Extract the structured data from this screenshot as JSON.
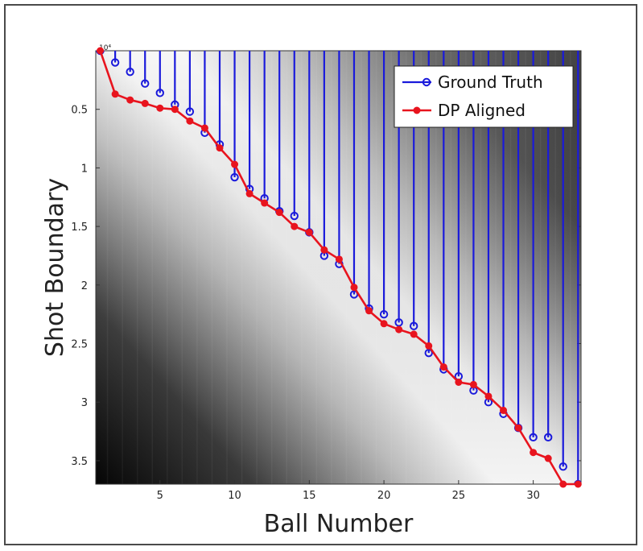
{
  "chart_data": {
    "type": "line",
    "background": "heatmap",
    "xlabel": "Ball Number",
    "ylabel": "Shot Boundary",
    "y_exponent_label": "10⁴",
    "xlim": [
      0.7,
      33.2
    ],
    "ylim": [
      0,
      3.7
    ],
    "y_inverted": true,
    "x_ticks": [
      5,
      10,
      15,
      20,
      25,
      30
    ],
    "y_ticks": [
      0.5,
      1,
      1.5,
      2,
      2.5,
      3,
      3.5
    ],
    "legend_position": "top-right",
    "grid": false,
    "series": [
      {
        "name": "Ground Truth",
        "color": "#1a1adb",
        "style": "stem-circle",
        "x": [
          1,
          2,
          3,
          4,
          5,
          6,
          7,
          8,
          9,
          10,
          11,
          12,
          13,
          14,
          15,
          16,
          17,
          18,
          19,
          20,
          21,
          22,
          23,
          24,
          25,
          26,
          27,
          28,
          29,
          30,
          31,
          32,
          33
        ],
        "y": [
          0,
          0.1,
          0.18,
          0.28,
          0.36,
          0.46,
          0.52,
          0.7,
          0.8,
          1.08,
          1.18,
          1.26,
          1.37,
          1.41,
          1.55,
          1.75,
          1.82,
          2.08,
          2.2,
          2.25,
          2.32,
          2.35,
          2.58,
          2.72,
          2.78,
          2.9,
          3,
          3.1,
          3.22,
          3.3,
          3.3,
          3.55,
          3.7
        ]
      },
      {
        "name": "DP Aligned",
        "color": "#e8141e",
        "style": "line-dot",
        "x": [
          1,
          2,
          3,
          4,
          5,
          6,
          7,
          8,
          9,
          10,
          11,
          12,
          13,
          14,
          15,
          16,
          17,
          18,
          19,
          20,
          21,
          22,
          23,
          24,
          25,
          26,
          27,
          28,
          29,
          30,
          31,
          32,
          33
        ],
        "y": [
          0,
          0.37,
          0.42,
          0.45,
          0.49,
          0.5,
          0.6,
          0.66,
          0.83,
          0.97,
          1.22,
          1.3,
          1.38,
          1.5,
          1.55,
          1.7,
          1.78,
          2.02,
          2.22,
          2.33,
          2.38,
          2.42,
          2.52,
          2.7,
          2.83,
          2.85,
          2.95,
          3.07,
          3.22,
          3.43,
          3.48,
          3.7,
          3.7
        ]
      }
    ]
  }
}
